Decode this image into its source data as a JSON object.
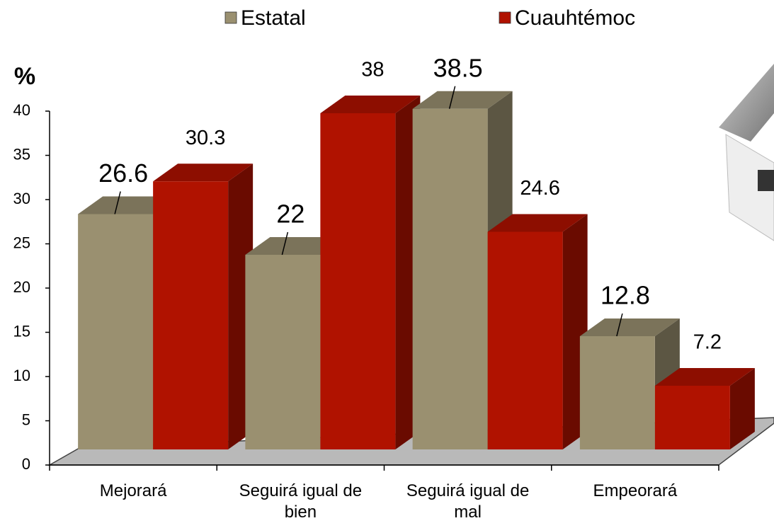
{
  "chart_data": {
    "type": "bar3d",
    "y_label": "%",
    "categories": [
      "Mejorará",
      "Seguirá igual de bien",
      "Seguirá igual de mal",
      "Empeorará"
    ],
    "series": [
      {
        "name": "Estatal",
        "color": "#9a9070",
        "values": [
          26.6,
          22,
          38.5,
          12.8
        ]
      },
      {
        "name": "Cuauhtémoc",
        "color": "#b01200",
        "values": [
          30.3,
          38,
          24.6,
          7.2
        ]
      }
    ],
    "ylim": [
      0,
      40
    ],
    "yticks": [
      0,
      5,
      10,
      15,
      20,
      25,
      30,
      35,
      40
    ]
  }
}
